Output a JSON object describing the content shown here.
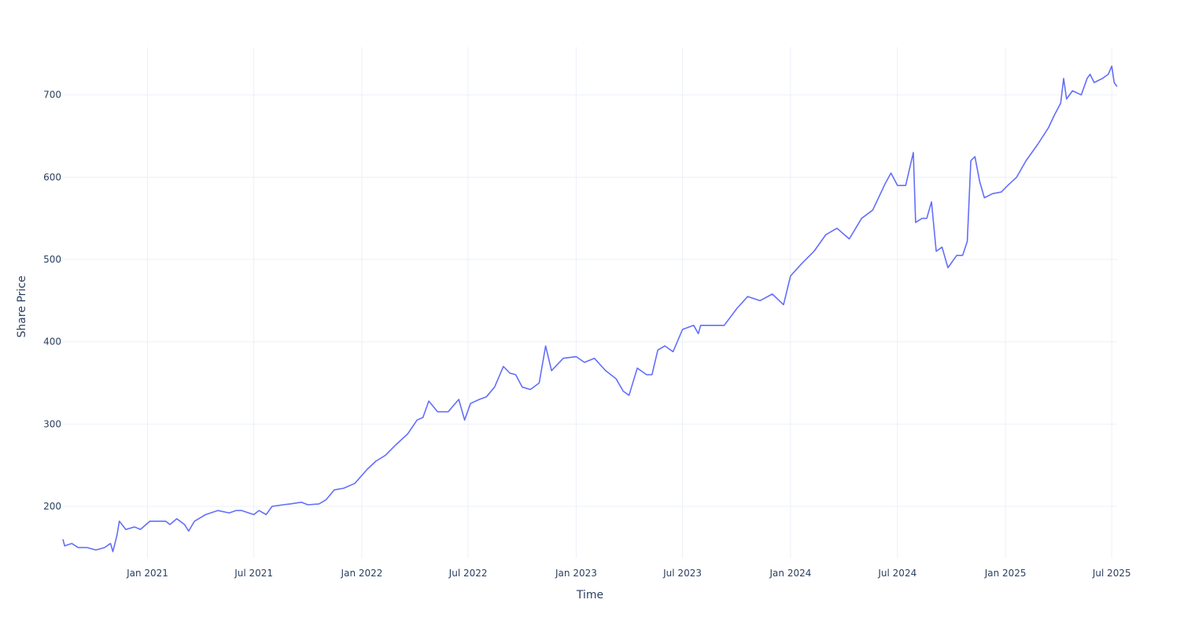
{
  "chart_data": {
    "type": "line",
    "title": "",
    "xlabel": "Time",
    "ylabel": "Share Price",
    "x_tick_labels": [
      "Jan 2021",
      "Jul 2021",
      "Jan 2022",
      "Jul 2022",
      "Jan 2023",
      "Jul 2023",
      "Jan 2024",
      "Jul 2024",
      "Jan 2025",
      "Jul 2025"
    ],
    "x_tick_dates": [
      "2021-01-01",
      "2021-07-01",
      "2022-01-01",
      "2022-07-01",
      "2023-01-01",
      "2023-07-01",
      "2024-01-01",
      "2024-07-01",
      "2025-01-01",
      "2025-07-01"
    ],
    "y_tick_labels": [
      "200",
      "300",
      "400",
      "500",
      "600",
      "700"
    ],
    "y_ticks": [
      200,
      300,
      400,
      500,
      600,
      700
    ],
    "xlim": [
      "2020-08-10",
      "2025-07-10"
    ],
    "ylim": [
      137,
      758
    ],
    "grid": true,
    "legend": "none",
    "colors": {
      "line": "#636efa",
      "grid": "#ebf0f8",
      "text": "#2a3f5f"
    },
    "series": [
      {
        "x": [
          "2020-08-10",
          "2020-08-13",
          "2020-08-25",
          "2020-09-05",
          "2020-09-20",
          "2020-10-05",
          "2020-10-20",
          "2020-10-30",
          "2020-11-03",
          "2020-11-10",
          "2020-11-14",
          "2020-11-25",
          "2020-12-10",
          "2020-12-20",
          "2021-01-05",
          "2021-02-01",
          "2021-02-08",
          "2021-02-20",
          "2021-03-05",
          "2021-03-12",
          "2021-03-22",
          "2021-04-10",
          "2021-05-01",
          "2021-05-20",
          "2021-06-01",
          "2021-06-10",
          "2021-07-01",
          "2021-07-10",
          "2021-07-22",
          "2021-08-01",
          "2021-08-20",
          "2021-09-01",
          "2021-09-20",
          "2021-10-01",
          "2021-10-20",
          "2021-11-01",
          "2021-11-15",
          "2021-12-01",
          "2021-12-20",
          "2022-01-10",
          "2022-01-25",
          "2022-02-10",
          "2022-02-28",
          "2022-03-20",
          "2022-04-05",
          "2022-04-15",
          "2022-04-25",
          "2022-05-10",
          "2022-05-28",
          "2022-06-15",
          "2022-06-25",
          "2022-07-05",
          "2022-07-20",
          "2022-08-01",
          "2022-08-15",
          "2022-08-30",
          "2022-09-10",
          "2022-09-20",
          "2022-10-01",
          "2022-10-15",
          "2022-10-30",
          "2022-11-10",
          "2022-11-20",
          "2022-12-10",
          "2023-01-01",
          "2023-01-15",
          "2023-02-01",
          "2023-02-20",
          "2023-03-10",
          "2023-03-22",
          "2023-04-01",
          "2023-04-15",
          "2023-05-01",
          "2023-05-10",
          "2023-05-20",
          "2023-06-01",
          "2023-06-15",
          "2023-07-01",
          "2023-07-20",
          "2023-07-28",
          "2023-08-01",
          "2023-08-20",
          "2023-09-10",
          "2023-10-01",
          "2023-10-20",
          "2023-11-10",
          "2023-12-01",
          "2023-12-20",
          "2024-01-01",
          "2024-01-20",
          "2024-02-10",
          "2024-03-01",
          "2024-03-20",
          "2024-04-10",
          "2024-05-01",
          "2024-05-20",
          "2024-06-10",
          "2024-06-20",
          "2024-07-01",
          "2024-07-15",
          "2024-07-28",
          "2024-08-01",
          "2024-08-12",
          "2024-08-20",
          "2024-08-28",
          "2024-09-05",
          "2024-09-15",
          "2024-09-25",
          "2024-10-10",
          "2024-10-20",
          "2024-10-28",
          "2024-11-03",
          "2024-11-10",
          "2024-11-18",
          "2024-11-26",
          "2024-12-10",
          "2024-12-25",
          "2025-01-05",
          "2025-01-20",
          "2025-02-05",
          "2025-02-25",
          "2025-03-15",
          "2025-03-25",
          "2025-04-05",
          "2025-04-10",
          "2025-04-15",
          "2025-04-25",
          "2025-05-10",
          "2025-05-20",
          "2025-05-25",
          "2025-06-01",
          "2025-06-15",
          "2025-06-25",
          "2025-07-01",
          "2025-07-05",
          "2025-07-10"
        ],
        "y": [
          160,
          152,
          155,
          150,
          150,
          147,
          150,
          155,
          145,
          165,
          182,
          172,
          175,
          172,
          182,
          182,
          178,
          185,
          178,
          170,
          182,
          190,
          195,
          192,
          195,
          195,
          190,
          195,
          190,
          200,
          202,
          203,
          205,
          202,
          203,
          208,
          220,
          222,
          228,
          245,
          255,
          262,
          275,
          288,
          305,
          308,
          328,
          315,
          315,
          330,
          305,
          325,
          330,
          333,
          345,
          370,
          362,
          360,
          345,
          342,
          350,
          395,
          365,
          380,
          382,
          375,
          380,
          365,
          355,
          340,
          335,
          368,
          360,
          360,
          390,
          395,
          388,
          415,
          420,
          410,
          420,
          420,
          420,
          440,
          455,
          450,
          458,
          445,
          480,
          495,
          510,
          530,
          538,
          525,
          550,
          560,
          592,
          605,
          590,
          590,
          630,
          545,
          550,
          550,
          570,
          510,
          515,
          490,
          505,
          505,
          522,
          620,
          625,
          595,
          575,
          580,
          582,
          590,
          600,
          620,
          640,
          660,
          675,
          690,
          720,
          695,
          705,
          700,
          720,
          725,
          715,
          720,
          725,
          735,
          715,
          710
        ]
      }
    ]
  }
}
